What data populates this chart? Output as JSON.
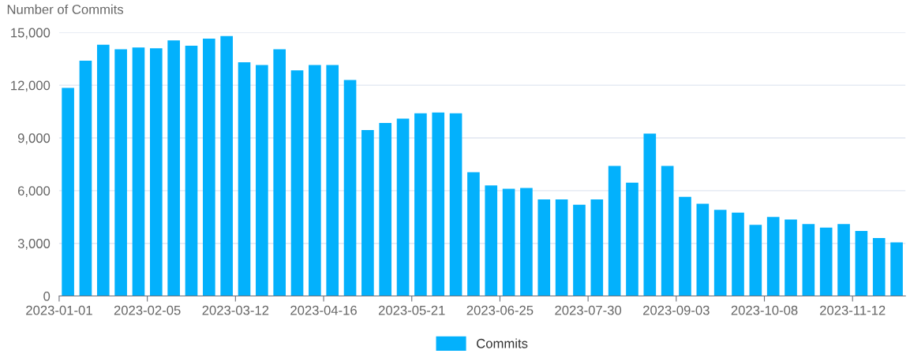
{
  "chart_data": {
    "type": "bar",
    "ylabel": "Number of Commits",
    "categories": [
      "2023-01-01",
      null,
      null,
      null,
      null,
      "2023-02-05",
      null,
      null,
      null,
      null,
      "2023-03-12",
      null,
      null,
      null,
      null,
      "2023-04-16",
      null,
      null,
      null,
      null,
      "2023-05-21",
      null,
      null,
      null,
      null,
      "2023-06-25",
      null,
      null,
      null,
      null,
      "2023-07-30",
      null,
      null,
      null,
      null,
      "2023-09-03",
      null,
      null,
      null,
      null,
      "2023-10-08",
      null,
      null,
      null,
      null,
      "2023-11-12",
      null,
      null
    ],
    "series": [
      {
        "name": "Commits",
        "color": "#03b1fc",
        "values": [
          11850,
          13400,
          14300,
          14050,
          14150,
          14100,
          14550,
          14250,
          14650,
          14800,
          13300,
          13150,
          14050,
          12850,
          13150,
          13150,
          12300,
          9450,
          9850,
          10100,
          10400,
          10450,
          10400,
          7050,
          6300,
          6100,
          6150,
          5500,
          5500,
          5200,
          5500,
          7400,
          6450,
          9250,
          7400,
          5650,
          5250,
          4900,
          4750,
          4050,
          4500,
          4350,
          4100,
          3900,
          4100,
          3700,
          3300,
          3050
        ]
      }
    ],
    "ylim": [
      0,
      15000
    ],
    "yticks": [
      {
        "value": 0,
        "label": "0"
      },
      {
        "value": 3000,
        "label": "3,000"
      },
      {
        "value": 6000,
        "label": "6,000"
      },
      {
        "value": 9000,
        "label": "9,000"
      },
      {
        "value": 12000,
        "label": "12,000"
      },
      {
        "value": 15000,
        "label": "15,000"
      }
    ],
    "grid": "y",
    "legend": "bottom"
  }
}
